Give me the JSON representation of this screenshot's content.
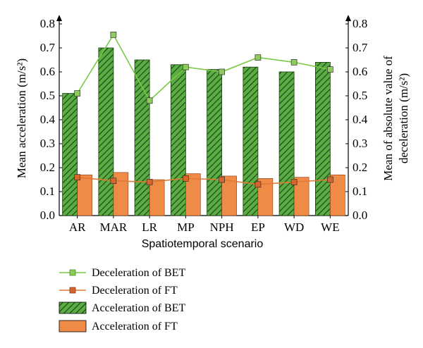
{
  "chart_data": {
    "type": "bar",
    "categories": [
      "AR",
      "MAR",
      "LR",
      "MP",
      "NPH",
      "EP",
      "WD",
      "WE"
    ],
    "xlabel": "Spatiotemporal scenario",
    "ylabel": "Mean acceleration (m/s²)",
    "ylabel_right": "Mean of absolute value of deceleration (m/s²)",
    "ylabel_right_lines": [
      "Mean of absolute value of",
      "deceleration (m/s²)"
    ],
    "ylim": [
      0,
      0.8
    ],
    "ylim_right": [
      0,
      0.8
    ],
    "yticks": [
      "0.0",
      "0.1",
      "0.2",
      "0.3",
      "0.4",
      "0.5",
      "0.6",
      "0.7",
      "0.8"
    ],
    "series": [
      {
        "name": "Acceleration of BET",
        "kind": "bar",
        "pattern": "hatched",
        "color": "#55a83f",
        "values": [
          0.51,
          0.7,
          0.65,
          0.63,
          0.61,
          0.62,
          0.6,
          0.64
        ]
      },
      {
        "name": "Acceleration of FT",
        "kind": "bar",
        "color": "#ef8a47",
        "values": [
          0.17,
          0.18,
          0.15,
          0.175,
          0.165,
          0.155,
          0.16,
          0.17
        ]
      },
      {
        "name": "Deceleration of BET",
        "kind": "line",
        "axis": "right",
        "color": "#7ac943",
        "marker_color": "#8dcc5a",
        "values": [
          0.51,
          0.755,
          0.48,
          0.62,
          0.6,
          0.66,
          0.64,
          0.61
        ]
      },
      {
        "name": "Deceleration of FT",
        "kind": "line",
        "axis": "right",
        "color": "#e07a33",
        "marker_color": "#d9642c",
        "values": [
          0.16,
          0.145,
          0.14,
          0.155,
          0.15,
          0.13,
          0.14,
          0.15
        ]
      }
    ],
    "legend": {
      "placement": "bottom",
      "items": [
        "Deceleration of BET",
        "Deceleration of FT",
        "Acceleration of BET",
        "Acceleration of FT"
      ]
    },
    "grid": false
  }
}
